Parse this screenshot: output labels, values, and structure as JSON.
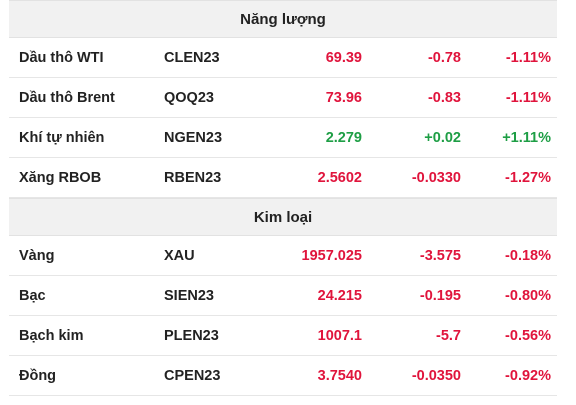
{
  "colors": {
    "up": "#1e9e45",
    "down": "#e0143c",
    "header_bg": "#f1f1f1",
    "text": "#222222"
  },
  "sections": [
    {
      "title": "Năng lượng",
      "rows": [
        {
          "name": "Dầu thô WTI",
          "symbol": "CLEN23",
          "price": "69.39",
          "change": "-0.78",
          "pct": "-1.11%",
          "dir": "down"
        },
        {
          "name": "Dầu thô Brent",
          "symbol": "QOQ23",
          "price": "73.96",
          "change": "-0.83",
          "pct": "-1.11%",
          "dir": "down"
        },
        {
          "name": "Khí tự nhiên",
          "symbol": "NGEN23",
          "price": "2.279",
          "change": "+0.02",
          "pct": "+1.11%",
          "dir": "up"
        },
        {
          "name": "Xăng RBOB",
          "symbol": "RBEN23",
          "price": "2.5602",
          "change": "-0.0330",
          "pct": "-1.27%",
          "dir": "down"
        }
      ]
    },
    {
      "title": "Kim loại",
      "rows": [
        {
          "name": "Vàng",
          "symbol": "XAU",
          "price": "1957.025",
          "change": "-3.575",
          "pct": "-0.18%",
          "dir": "down"
        },
        {
          "name": "Bạc",
          "symbol": "SIEN23",
          "price": "24.215",
          "change": "-0.195",
          "pct": "-0.80%",
          "dir": "down"
        },
        {
          "name": "Bạch kim",
          "symbol": "PLEN23",
          "price": "1007.1",
          "change": "-5.7",
          "pct": "-0.56%",
          "dir": "down"
        },
        {
          "name": "Đồng",
          "symbol": "CPEN23",
          "price": "3.7540",
          "change": "-0.0350",
          "pct": "-0.92%",
          "dir": "down"
        }
      ]
    }
  ]
}
